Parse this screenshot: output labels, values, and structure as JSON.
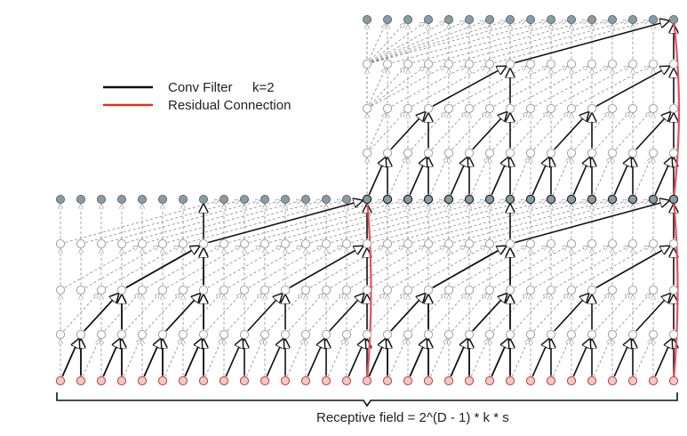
{
  "legend": {
    "conv_label": "Conv Filter",
    "kernel_label": "k=2",
    "residual_label": "Residual Connection"
  },
  "caption": "Receptive field =  2^(D - 1) * k * s",
  "colors": {
    "conv": "#111111",
    "residual": "#e8505b",
    "residual_legend": "#d63a1f",
    "input_node": "#f4c6c6",
    "output_node": "#8a9ba3",
    "hidden_node": "#ffffff",
    "faint_edge": "#8a8a8a"
  },
  "network": {
    "kernel_size": 2,
    "levels_per_block": 4,
    "blocks": 2,
    "input_nodes": 16
  }
}
